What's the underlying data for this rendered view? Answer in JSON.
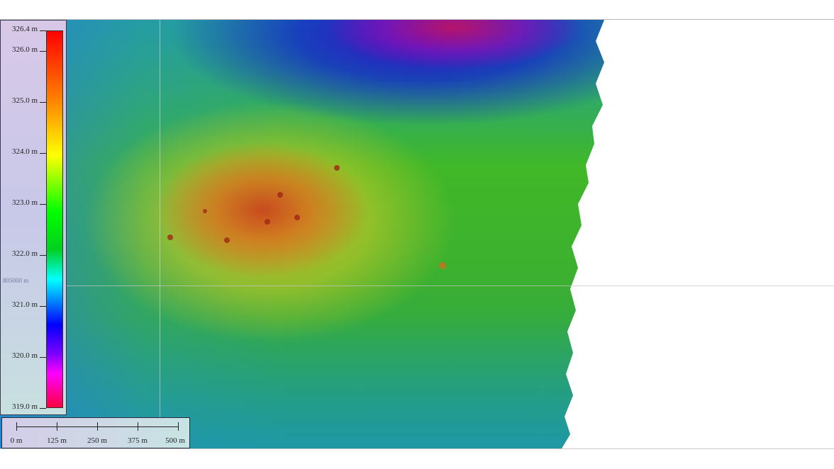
{
  "colorbar": {
    "ticks": [
      "326.4 m",
      "326.0 m",
      "325.0 m",
      "324.0 m",
      "323.0 m",
      "322.0 m",
      "321.0 m",
      "320.0 m",
      "319.0 m"
    ],
    "values": [
      326.4,
      326.0,
      325.0,
      324.0,
      323.0,
      322.0,
      321.0,
      320.0,
      319.0
    ],
    "min": 319.0,
    "max": 326.4,
    "colors": [
      "#ff0000",
      "#ffff00",
      "#00ff00",
      "#00ffff",
      "#0000ff",
      "#ff00ff",
      "#ff0040"
    ]
  },
  "scale_bar": {
    "labels": [
      "0 m",
      "125 m",
      "250 m",
      "375 m",
      "500 m"
    ]
  },
  "grid": {
    "label": "805000 m"
  }
}
